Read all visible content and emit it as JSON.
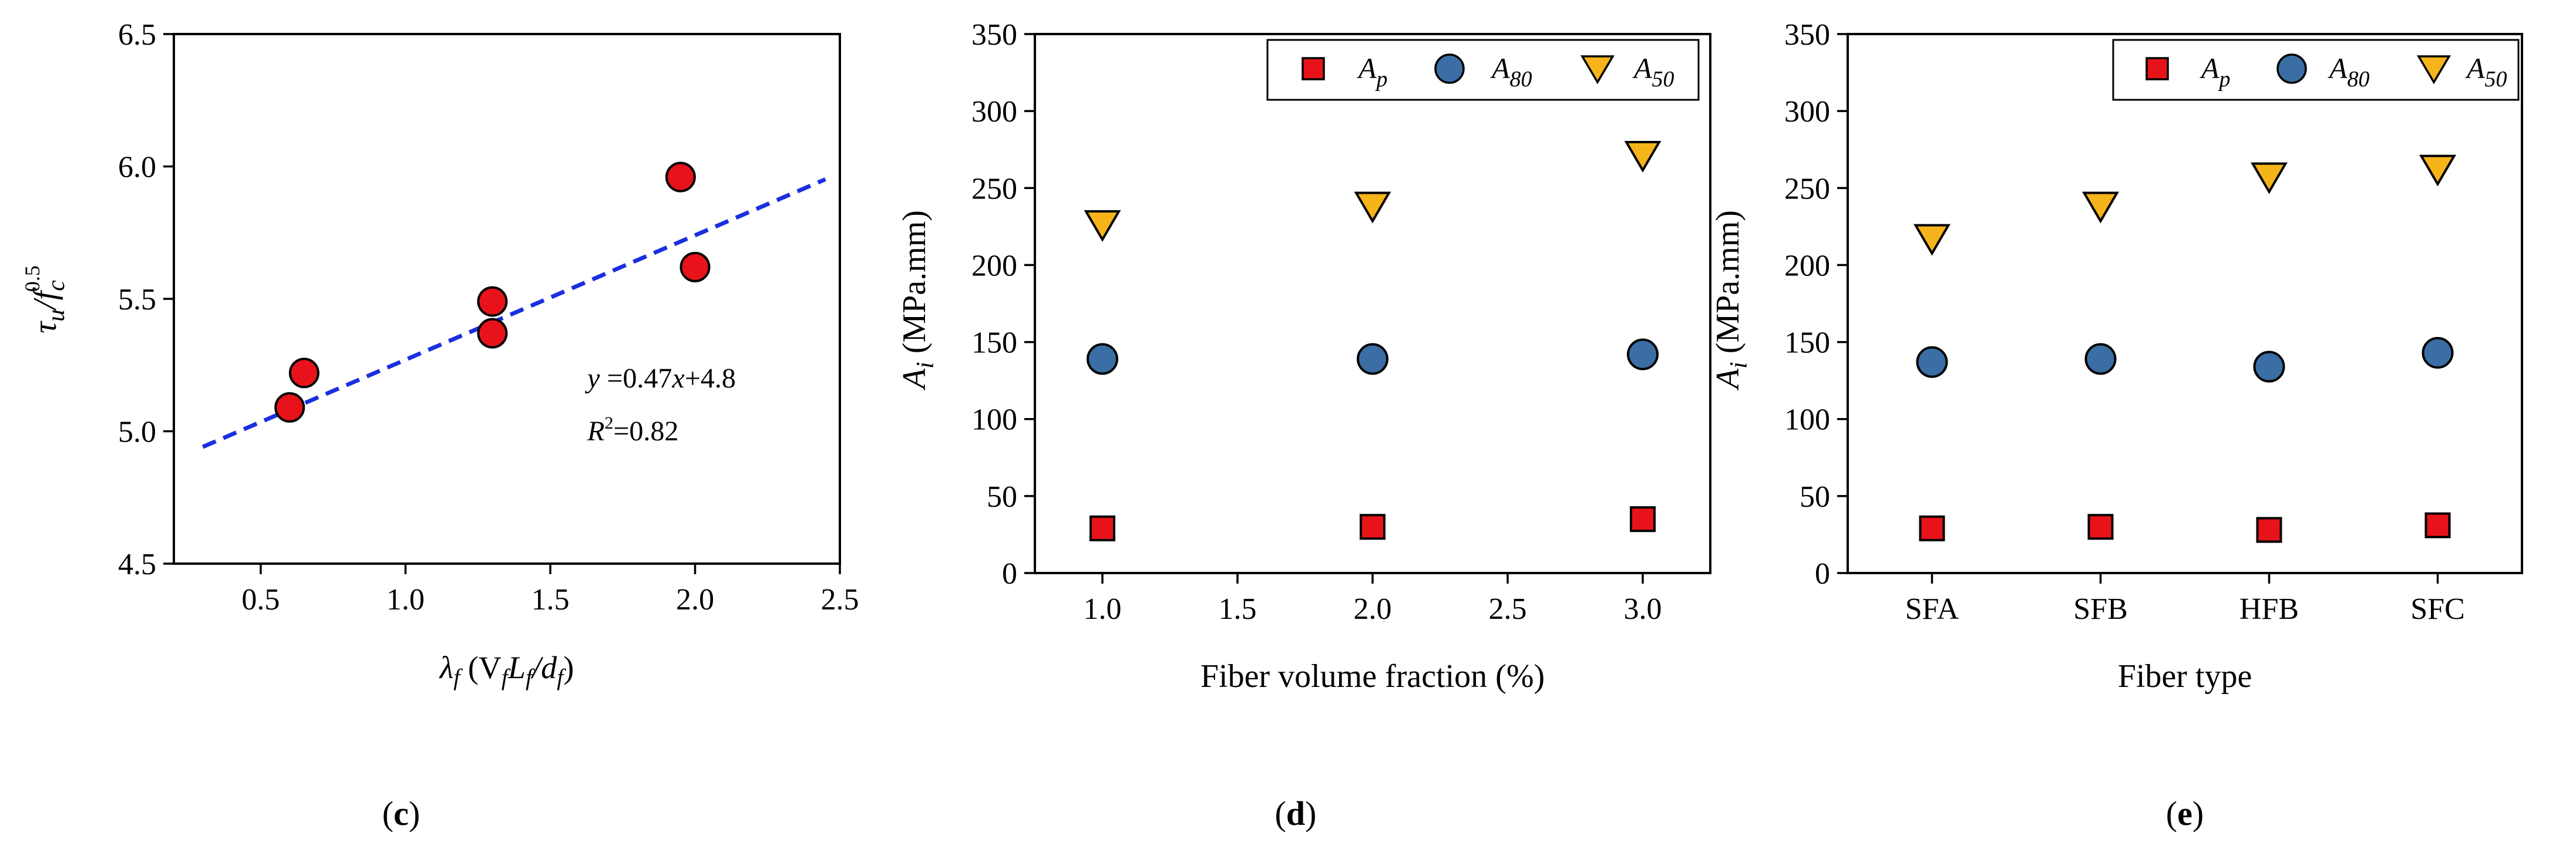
{
  "colors": {
    "red": "#e8131a",
    "blue": "#3a6ea5",
    "yellow": "#f5b41a",
    "fit": "#1a2fe0",
    "marker_edge": "#000000"
  },
  "chart_data": [
    {
      "type": "scatter",
      "panel_label": "c",
      "xlabel_main": "λ",
      "xlabel_sub": "f",
      "xlabel_rest": "(V",
      "xlabel_full": "λf (VfLf/df)",
      "ylabel_full": "τu/fc^0.5",
      "xlim": [
        0.2,
        2.5
      ],
      "ylim": [
        4.5,
        6.5
      ],
      "xticks": [
        0.5,
        1.0,
        1.5,
        2.0,
        2.5
      ],
      "xtick_labels": [
        "0.5",
        "1.0",
        "1.5",
        "2.0",
        "2.5"
      ],
      "yticks": [
        4.5,
        5.0,
        5.5,
        6.0,
        6.5
      ],
      "ytick_labels": [
        "4.5",
        "5.0",
        "5.5",
        "6.0",
        "6.5"
      ],
      "x": [
        0.6,
        0.65,
        1.3,
        1.3,
        1.95,
        2.0
      ],
      "y": [
        5.09,
        5.22,
        5.49,
        5.37,
        5.96,
        5.62
      ],
      "fit": {
        "slope": 0.47,
        "intercept": 4.8,
        "x_range": [
          0.3,
          2.45
        ]
      },
      "equation": {
        "y": "y",
        "eq": " =0.47",
        "x": "x",
        "rest": "+4.8"
      },
      "r2": {
        "R": "R",
        "sup": "2",
        "val": "=0.82"
      }
    },
    {
      "type": "scatter",
      "panel_label": "d",
      "xlabel": "Fiber volume fraction (%)",
      "ylabel": "A_i (MPa.mm)",
      "xlim": [
        0.75,
        3.25
      ],
      "ylim": [
        0,
        350
      ],
      "xticks": [
        1.0,
        1.5,
        2.0,
        2.5,
        3.0
      ],
      "xtick_labels": [
        "1.0",
        "1.5",
        "2.0",
        "2.5",
        "3.0"
      ],
      "yticks": [
        0,
        50,
        100,
        150,
        200,
        250,
        300,
        350
      ],
      "ytick_labels": [
        "0",
        "50",
        "100",
        "150",
        "200",
        "250",
        "300",
        "350"
      ],
      "x": [
        1.0,
        2.0,
        3.0
      ],
      "series": [
        {
          "name": "A_p",
          "values": [
            29,
            30,
            35
          ]
        },
        {
          "name": "A_80",
          "values": [
            139,
            139,
            142
          ]
        },
        {
          "name": "A_50",
          "values": [
            228,
            240,
            273
          ]
        }
      ],
      "legend_position": "top-right"
    },
    {
      "type": "scatter",
      "panel_label": "e",
      "xlabel": "Fiber type",
      "ylabel": "A_i (MPa.mm)",
      "ylim": [
        0,
        350
      ],
      "categories": [
        "SFA",
        "SFB",
        "HFB",
        "SFC"
      ],
      "yticks": [
        0,
        50,
        100,
        150,
        200,
        250,
        300,
        350
      ],
      "ytick_labels": [
        "0",
        "50",
        "100",
        "150",
        "200",
        "250",
        "300",
        "350"
      ],
      "series": [
        {
          "name": "A_p",
          "values": [
            29,
            30,
            28,
            31
          ]
        },
        {
          "name": "A_80",
          "values": [
            137,
            139,
            134,
            143
          ]
        },
        {
          "name": "A_50",
          "values": [
            219,
            240,
            259,
            264
          ]
        }
      ],
      "legend_position": "top-right"
    }
  ],
  "legend": {
    "A": "A",
    "p": "p",
    "n80": "80",
    "n50": "50"
  },
  "axis_text": {
    "y_A": "A",
    "y_i": "i",
    "y_unit": " (MPa.mm)",
    "tau": "τ",
    "u": "u",
    "slash_f": "/f",
    "c": "c",
    "exp": "0.5",
    "lam": "λ",
    "f": "f",
    "openV": " (V",
    "L": "L",
    "slash_d": "/d",
    "close": ")"
  }
}
